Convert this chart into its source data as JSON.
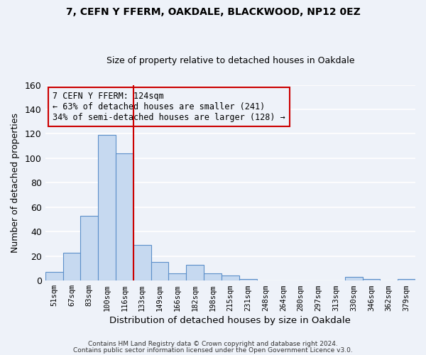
{
  "title": "7, CEFN Y FFERM, OAKDALE, BLACKWOOD, NP12 0EZ",
  "subtitle": "Size of property relative to detached houses in Oakdale",
  "xlabel": "Distribution of detached houses by size in Oakdale",
  "ylabel": "Number of detached properties",
  "bin_labels": [
    "51sqm",
    "67sqm",
    "83sqm",
    "100sqm",
    "116sqm",
    "133sqm",
    "149sqm",
    "166sqm",
    "182sqm",
    "198sqm",
    "215sqm",
    "231sqm",
    "248sqm",
    "264sqm",
    "280sqm",
    "297sqm",
    "313sqm",
    "330sqm",
    "346sqm",
    "362sqm",
    "379sqm"
  ],
  "bar_values": [
    7,
    23,
    53,
    119,
    104,
    29,
    15,
    6,
    13,
    6,
    4,
    1,
    0,
    0,
    0,
    0,
    0,
    3,
    1,
    0,
    1
  ],
  "bar_color": "#c6d9f0",
  "bar_edge_color": "#5b8fc9",
  "ylim": [
    0,
    160
  ],
  "yticks": [
    0,
    20,
    40,
    60,
    80,
    100,
    120,
    140,
    160
  ],
  "vline_color": "#cc0000",
  "vline_bin_index": 4.5,
  "annotation_line1": "7 CEFN Y FFERM: 124sqm",
  "annotation_line2": "← 63% of detached houses are smaller (241)",
  "annotation_line3": "34% of semi-detached houses are larger (128) →",
  "annotation_box_color": "#cc0000",
  "footer_line1": "Contains HM Land Registry data © Crown copyright and database right 2024.",
  "footer_line2": "Contains public sector information licensed under the Open Government Licence v3.0.",
  "background_color": "#eef2f9",
  "grid_color": "#ffffff"
}
